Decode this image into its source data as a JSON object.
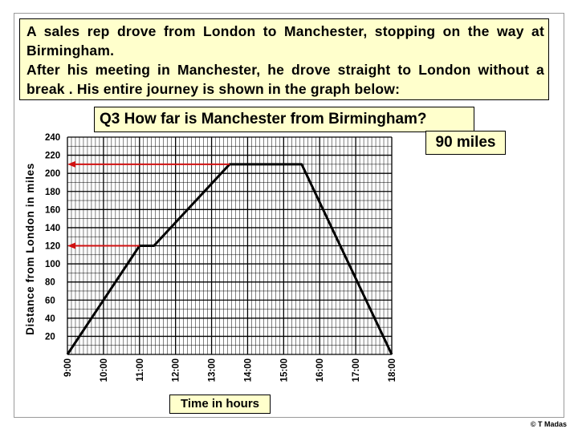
{
  "intro": {
    "line1": "A sales rep drove from London to Manchester, stopping on the way at Birmingham.",
    "line2": "After his meeting in Manchester, he drove straight to London without a break . His entire journey is shown in the graph below:"
  },
  "question": "Q3  How far is Manchester from Birmingham?",
  "answer": "90 miles",
  "credit": "© T Madas",
  "chart_data": {
    "type": "line",
    "xlabel": "Time in hours",
    "ylabel": "Distance from London in miles",
    "x_ticks": [
      "9:00",
      "10:00",
      "11:00",
      "12:00",
      "13:00",
      "14:00",
      "15:00",
      "16:00",
      "17:00",
      "18:00"
    ],
    "y_ticks": [
      20,
      40,
      60,
      80,
      100,
      120,
      140,
      160,
      180,
      200,
      220,
      240
    ],
    "xlim": [
      9,
      18
    ],
    "ylim": [
      0,
      240
    ],
    "grid": true,
    "series": [
      {
        "x": [
          9,
          11,
          11.4,
          13.5,
          15.5,
          18
        ],
        "y": [
          0,
          120,
          120,
          210,
          210,
          0
        ]
      }
    ],
    "annotations": [
      {
        "type": "arrow",
        "from": [
          11,
          120
        ],
        "to": [
          9,
          120
        ]
      },
      {
        "type": "arrow",
        "from": [
          13.5,
          210
        ],
        "to": [
          9,
          210
        ]
      }
    ],
    "colors": {
      "line": "#000000",
      "arrow": "#d01010",
      "grid": "#000000"
    }
  }
}
